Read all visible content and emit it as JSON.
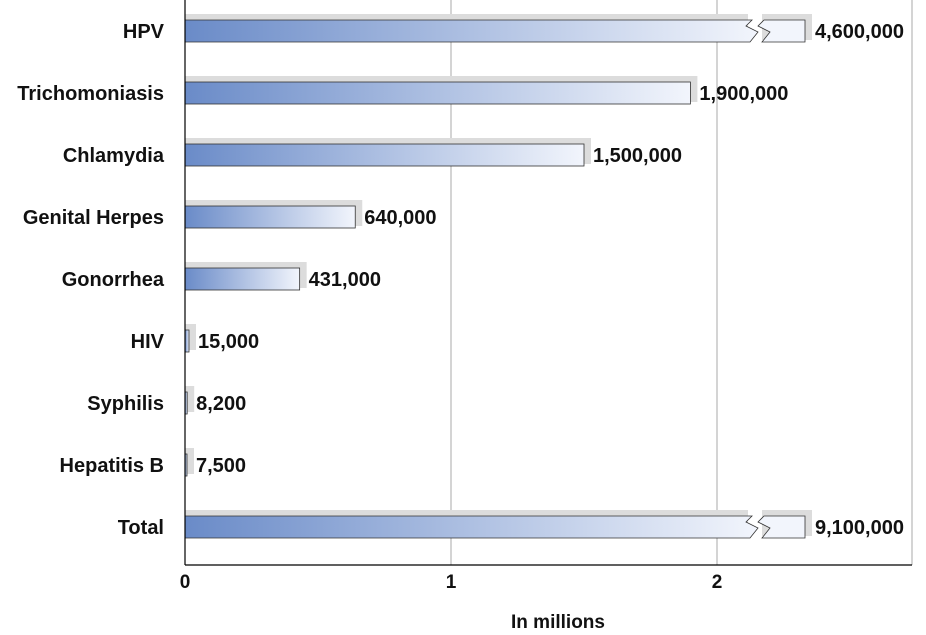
{
  "chart_data": {
    "type": "bar",
    "orientation": "horizontal",
    "categories": [
      "HPV",
      "Trichomoniasis",
      "Chlamydia",
      "Genital Herpes",
      "Gonorrhea",
      "HIV",
      "Syphilis",
      "Hepatitis B",
      "Total"
    ],
    "values": [
      4600000,
      1900000,
      1500000,
      640000,
      431000,
      15000,
      8200,
      7500,
      9100000
    ],
    "value_labels": [
      "4,600,000",
      "1,900,000",
      "1,500,000",
      "640,000",
      "431,000",
      "15,000",
      "8,200",
      "7,500",
      "9,100,000"
    ],
    "broken_axis_bars": [
      "HPV",
      "Total"
    ],
    "xlabel": "In millions",
    "xticks": [
      "0",
      "1",
      "2"
    ],
    "xlim": [
      0,
      2.8
    ],
    "grid": "vertical",
    "legend": "none",
    "colors": {
      "bar_start": "#6a8bc8",
      "bar_end": "#f2f5fc",
      "shadow": "#dcdcdc",
      "grid": "#a8a8a8",
      "axis": "#000000"
    }
  }
}
